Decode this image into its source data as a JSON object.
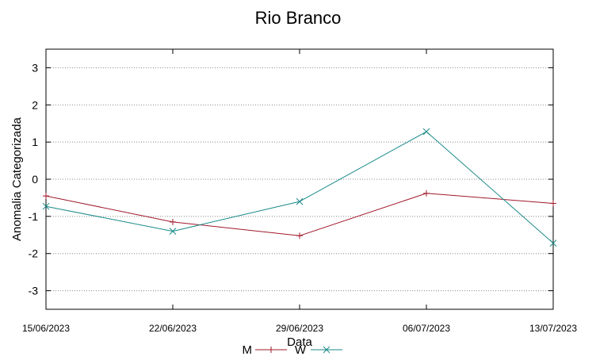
{
  "chart_data": {
    "type": "line",
    "title": "Rio Branco",
    "xlabel": "Data",
    "ylabel": "Anomalia Categorizada",
    "categories": [
      "15/06/2023",
      "22/06/2023",
      "29/06/2023",
      "06/07/2023",
      "13/07/2023"
    ],
    "series": [
      {
        "name": "M",
        "color": "#a0182a",
        "marker": "plus",
        "values": [
          -0.45,
          -1.15,
          -1.52,
          -0.38,
          -0.65
        ]
      },
      {
        "name": "W",
        "color": "#1a8a8a",
        "marker": "cross",
        "values": [
          -0.73,
          -1.4,
          -0.6,
          1.28,
          -1.72
        ]
      }
    ],
    "ylim": [
      -3.5,
      3.5
    ],
    "yticks": [
      3,
      2,
      1,
      0,
      -1,
      -2,
      -3
    ],
    "grid": true,
    "legend_position": "bottom-center"
  }
}
